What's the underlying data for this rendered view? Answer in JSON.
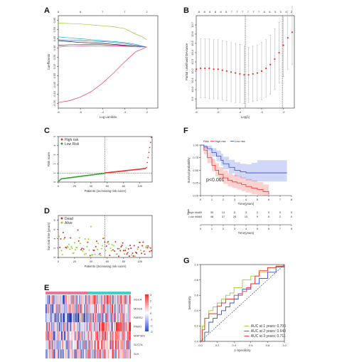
{
  "panel_labels": [
    "A",
    "B",
    "C",
    "D",
    "E",
    "F",
    "G"
  ],
  "chart_data": [
    {
      "panel": "A",
      "type": "line",
      "xlabel": "Log Lambda",
      "ylabel": "Coefficients",
      "xlim": [
        -6,
        -1.5
      ],
      "ylim": [
        -0.3,
        0.7
      ],
      "xticks": [
        -6,
        -5,
        -4,
        -3,
        -2
      ],
      "yticks": [
        -0.25,
        -0.15,
        -0.05,
        0.05,
        0.15,
        0.25,
        0.35,
        0.45,
        0.55,
        0.65
      ],
      "top_ticks": [
        "8",
        "6",
        "7",
        "7",
        "2"
      ],
      "top_tick_x": [
        -6,
        -5,
        -4,
        -3,
        -2
      ],
      "lambda": [
        -6,
        -5.5,
        -5,
        -4.5,
        -4,
        -3.5,
        -3,
        -2.5,
        -2.2,
        -2
      ],
      "series": [
        {
          "color": "#9acd32",
          "values": [
            0.62,
            0.615,
            0.61,
            0.6,
            0.59,
            0.58,
            0.56,
            0.5,
            0.47,
            0.44
          ]
        },
        {
          "color": "#00c0c0",
          "values": [
            0.47,
            0.46,
            0.45,
            0.44,
            0.43,
            0.42,
            0.41,
            0.39,
            0.37,
            0.36
          ]
        },
        {
          "color": "#4169e1",
          "values": [
            0.44,
            0.435,
            0.43,
            0.425,
            0.42,
            0.41,
            0.4,
            0.38,
            0.37,
            0.36
          ]
        },
        {
          "color": "#111111",
          "values": [
            0.43,
            0.42,
            0.41,
            0.405,
            0.4,
            0.39,
            0.38,
            0.37,
            0.36,
            0.36
          ]
        },
        {
          "color": "#555555",
          "values": [
            0.38,
            0.385,
            0.39,
            0.39,
            0.385,
            0.38,
            0.375,
            0.37,
            0.365,
            0.36
          ]
        },
        {
          "color": "#ff66cc",
          "values": [
            0.36,
            0.37,
            0.375,
            0.38,
            0.38,
            0.375,
            0.37,
            0.365,
            0.36,
            0.36
          ]
        },
        {
          "color": "#aaaaaa",
          "values": [
            0.37,
            0.37,
            0.37,
            0.368,
            0.366,
            0.364,
            0.363,
            0.362,
            0.36,
            0.36
          ]
        },
        {
          "color": "#ee3366",
          "values": [
            -0.24,
            -0.22,
            -0.18,
            -0.12,
            -0.03,
            0.08,
            0.2,
            0.31,
            0.34,
            0.36
          ]
        }
      ]
    },
    {
      "panel": "B",
      "type": "scatter",
      "xlabel": "Log(λ)",
      "ylabel": "Partial Likelihood Deviance",
      "xlim": [
        -6,
        -1.5
      ],
      "ylim": [
        9.8,
        10.8
      ],
      "xticks": [
        -6,
        -5,
        -4,
        -3,
        -2
      ],
      "yticks": [
        9.9,
        10.0,
        10.1,
        10.2,
        10.3,
        10.4,
        10.5,
        10.6,
        10.7
      ],
      "top_ticks": [
        "8",
        "8",
        "8",
        "8",
        "8",
        "8",
        "7",
        "7",
        "7",
        "7",
        "7",
        "7",
        "6",
        "6",
        "5",
        "5",
        "4",
        "2"
      ],
      "vlines": [
        -3.75,
        -2.05
      ],
      "x": [
        -6.0,
        -5.8,
        -5.6,
        -5.4,
        -5.2,
        -5.0,
        -4.8,
        -4.6,
        -4.4,
        -4.2,
        -4.0,
        -3.8,
        -3.6,
        -3.4,
        -3.2,
        -3.0,
        -2.8,
        -2.6,
        -2.4,
        -2.2,
        -2.0,
        -1.8,
        -1.6
      ],
      "y": [
        10.22,
        10.23,
        10.23,
        10.23,
        10.22,
        10.22,
        10.21,
        10.2,
        10.19,
        10.18,
        10.17,
        10.16,
        10.16,
        10.17,
        10.18,
        10.2,
        10.23,
        10.27,
        10.33,
        10.4,
        10.48,
        10.56,
        10.62
      ],
      "err_low": [
        9.9,
        9.91,
        9.91,
        9.9,
        9.9,
        9.9,
        9.89,
        9.88,
        9.87,
        9.86,
        9.86,
        9.85,
        9.86,
        9.87,
        9.88,
        9.89,
        9.92,
        9.95,
        10.0,
        10.07,
        10.14,
        10.22,
        10.27
      ],
      "err_high": [
        10.54,
        10.55,
        10.55,
        10.55,
        10.54,
        10.54,
        10.53,
        10.52,
        10.51,
        10.5,
        10.49,
        10.47,
        10.46,
        10.47,
        10.48,
        10.51,
        10.54,
        10.59,
        10.66,
        10.73,
        10.8,
        10.85,
        10.9
      ]
    },
    {
      "panel": "C",
      "type": "scatter",
      "xlabel": "Patients (increasing risk socre)",
      "ylabel": "Risk score",
      "xlim": [
        0,
        115
      ],
      "ylim": [
        0,
        5
      ],
      "xticks": [
        0,
        20,
        40,
        60,
        80,
        100
      ],
      "yticks": [
        0,
        1,
        2,
        3,
        4,
        5
      ],
      "cutoff_x": 57,
      "cutoff_y": 1.0,
      "legend": [
        "High risk",
        "Low Risk"
      ],
      "colors": {
        "high": "#e8302a",
        "low": "#2ca02c"
      }
    },
    {
      "panel": "D",
      "type": "scatter",
      "xlabel": "Patients (increasing risk socre)",
      "ylabel": "Survival time (years)",
      "xlim": [
        0,
        115
      ],
      "ylim": [
        0,
        9
      ],
      "xticks": [
        0,
        20,
        40,
        60,
        80,
        100
      ],
      "yticks": [
        0,
        2,
        4,
        6,
        8
      ],
      "cutoff_x": 57,
      "legend": [
        "Dead",
        "Alive"
      ],
      "colors": {
        "dead": "#d62728",
        "alive": "#9acd32"
      }
    },
    {
      "panel": "E",
      "type": "heatmap",
      "rows": [
        "SGCA",
        "MOGS",
        "FARS2",
        "PNKD",
        "MAP3K8",
        "SLC7A",
        "SLK"
      ],
      "legend_values": [
        "3",
        "2",
        "1",
        "0",
        "-1",
        "-2",
        "-3"
      ],
      "group_colors": {
        "low": "#e9739c",
        "high": "#40d0c8"
      },
      "low_count": 57,
      "total": 115
    },
    {
      "panel": "F",
      "type": "line",
      "title": "",
      "legend_title": "Risk",
      "legend": [
        "High risk",
        "Low risk"
      ],
      "xlabel": "Time(years)",
      "ylabel": "Survival probability",
      "xlim": [
        0,
        8
      ],
      "ylim": [
        0,
        1
      ],
      "xticks": [
        0,
        1,
        2,
        3,
        4,
        5,
        6,
        7,
        8
      ],
      "yticks": [
        "0.00",
        "0.25",
        "0.50",
        "0.75",
        "1.00"
      ],
      "pvalue": "p<0.001",
      "colors": {
        "high": "#e8302a",
        "low": "#2f4bd6"
      },
      "series": [
        {
          "name": "High risk",
          "x": [
            0,
            0.3,
            0.6,
            1,
            1.3,
            1.6,
            2,
            2.4,
            2.8,
            3.2,
            3.6,
            4,
            4.5,
            5,
            5.5,
            6
          ],
          "y": [
            1,
            0.9,
            0.75,
            0.6,
            0.5,
            0.42,
            0.35,
            0.3,
            0.27,
            0.25,
            0.22,
            0.18,
            0.15,
            0.12,
            0.08,
            0.02
          ],
          "ci_low": [
            1,
            0.82,
            0.64,
            0.48,
            0.38,
            0.3,
            0.23,
            0.18,
            0.15,
            0.12,
            0.09,
            0.06,
            0.03,
            0.01,
            0,
            0
          ],
          "ci_high": [
            1,
            0.97,
            0.86,
            0.73,
            0.64,
            0.56,
            0.5,
            0.44,
            0.41,
            0.39,
            0.36,
            0.33,
            0.3,
            0.27,
            0.22,
            0.15
          ]
        },
        {
          "name": "Low risk",
          "x": [
            0,
            0.3,
            0.6,
            1,
            1.4,
            1.8,
            2,
            2.5,
            3,
            3.5,
            4,
            4.5,
            5,
            5.5,
            6,
            6.5,
            7,
            7.6
          ],
          "y": [
            1,
            0.97,
            0.93,
            0.85,
            0.78,
            0.7,
            0.63,
            0.56,
            0.5,
            0.47,
            0.45,
            0.45,
            0.45,
            0.45,
            0.45,
            0.45,
            0.45,
            0.45
          ],
          "ci_low": [
            1,
            0.93,
            0.87,
            0.77,
            0.68,
            0.59,
            0.52,
            0.44,
            0.38,
            0.34,
            0.3,
            0.28,
            0.28,
            0.28,
            0.28,
            0.28,
            0.28,
            0.28
          ],
          "ci_high": [
            1,
            1,
            0.99,
            0.94,
            0.89,
            0.83,
            0.77,
            0.71,
            0.66,
            0.63,
            0.62,
            0.65,
            0.7,
            0.7,
            0.7,
            0.7,
            0.7,
            0.7
          ]
        }
      ],
      "risk_table": {
        "title": "Risk",
        "rows": [
          {
            "label": "High risk",
            "color": "#e8302a",
            "values": [
              "60",
              "30",
              "14",
              "5",
              "3",
              "2",
              "0",
              "0",
              "0"
            ]
          },
          {
            "label": "Low risk",
            "color": "#2f4bd6",
            "values": [
              "60",
              "48",
              "37",
              "26",
              "15",
              "9",
              "5",
              "2",
              "0"
            ]
          }
        ],
        "xticks": [
          0,
          1,
          2,
          3,
          4,
          5,
          6,
          7,
          8
        ],
        "xlabel": "Time(years)"
      }
    },
    {
      "panel": "G",
      "type": "line",
      "xlabel": "1-Specificity",
      "ylabel": "Sensitivity",
      "xlim": [
        0,
        1
      ],
      "ylim": [
        0,
        1
      ],
      "xticks": [
        "0.0",
        "0.2",
        "0.4",
        "0.6",
        "0.8",
        "1.0"
      ],
      "yticks": [
        "0.0",
        "0.2",
        "0.4",
        "0.6",
        "0.8",
        "1.0"
      ],
      "series": [
        {
          "name": "AUC at 1 years: 0.706",
          "color": "#9acd32",
          "x": [
            0,
            0.02,
            0.05,
            0.1,
            0.15,
            0.2,
            0.25,
            0.3,
            0.35,
            0.4,
            0.5,
            0.6,
            0.7,
            0.8,
            0.9,
            1
          ],
          "y": [
            0,
            0.2,
            0.3,
            0.4,
            0.45,
            0.5,
            0.55,
            0.6,
            0.63,
            0.7,
            0.8,
            0.85,
            0.9,
            0.96,
            0.98,
            1
          ]
        },
        {
          "name": "AUC at 2 years: 0.649",
          "color": "#2f4bd6",
          "x": [
            0,
            0.05,
            0.1,
            0.15,
            0.2,
            0.25,
            0.3,
            0.35,
            0.4,
            0.45,
            0.5,
            0.6,
            0.7,
            0.8,
            0.9,
            1
          ],
          "y": [
            0,
            0.12,
            0.25,
            0.3,
            0.35,
            0.4,
            0.45,
            0.5,
            0.55,
            0.62,
            0.68,
            0.75,
            0.82,
            0.9,
            0.97,
            1
          ]
        },
        {
          "name": "AUC at 3 years: 0.711",
          "color": "#e8302a",
          "x": [
            0,
            0.02,
            0.05,
            0.1,
            0.15,
            0.2,
            0.25,
            0.3,
            0.4,
            0.5,
            0.55,
            0.6,
            0.65,
            0.7,
            0.8,
            0.9,
            1
          ],
          "y": [
            0,
            0.15,
            0.3,
            0.36,
            0.36,
            0.46,
            0.5,
            0.55,
            0.6,
            0.65,
            0.7,
            0.75,
            0.85,
            0.92,
            0.96,
            0.98,
            1
          ]
        }
      ]
    }
  ]
}
